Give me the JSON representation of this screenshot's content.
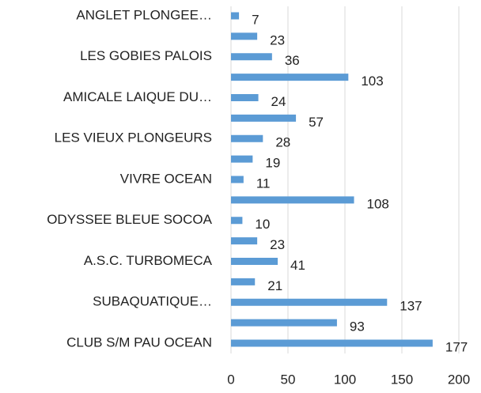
{
  "chart_data": {
    "type": "barh",
    "categories": [
      "ANGLET PLONGEE…",
      null,
      "LES GOBIES PALOIS",
      null,
      "AMICALE LAIQUE DU…",
      null,
      "LES VIEUX PLONGEURS",
      null,
      "VIVRE OCEAN",
      null,
      "ODYSSEE BLEUE SOCOA",
      null,
      "A.S.C. TURBOMECA",
      null,
      "SUBAQUATIQUE…",
      null,
      "CLUB S/M PAU OCEAN"
    ],
    "values": [
      7,
      23,
      36,
      103,
      24,
      57,
      28,
      19,
      11,
      108,
      10,
      23,
      41,
      21,
      137,
      93,
      177
    ],
    "color": "#5b9bd5",
    "xlim": [
      0,
      200
    ],
    "xticks": [
      0,
      50,
      100,
      150,
      200
    ],
    "grid": true
  }
}
